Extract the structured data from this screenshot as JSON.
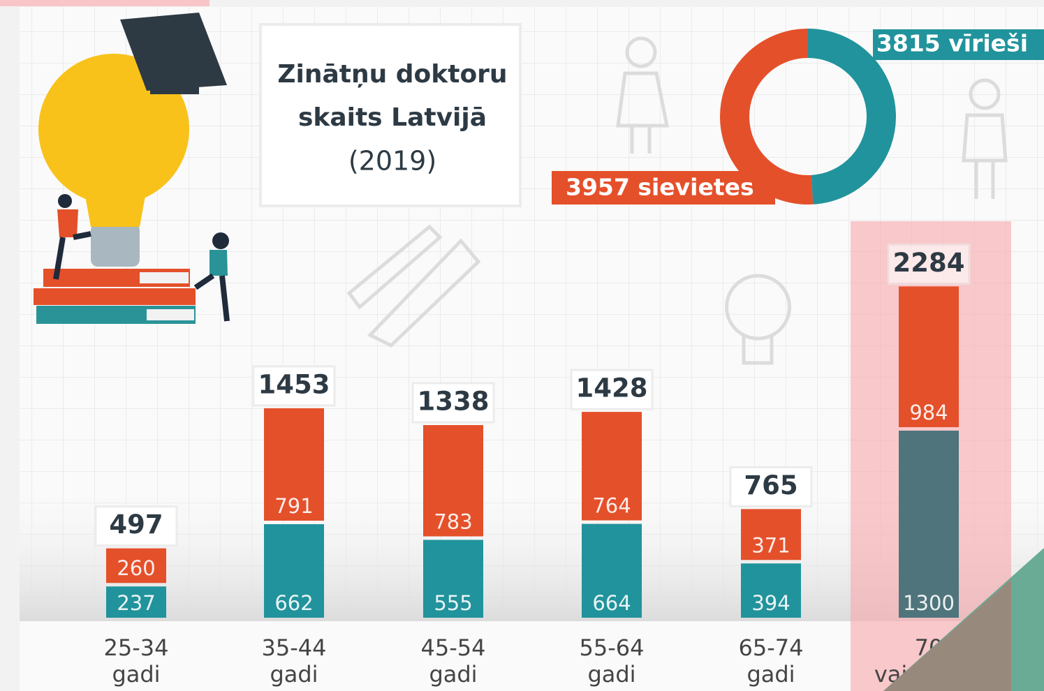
{
  "chart_data": [
    {
      "type": "pie",
      "values": [
        3957,
        3815
      ],
      "value_labels": [
        "3957 sievietes",
        "3815 vīrieši"
      ],
      "colors": [
        "#e4502a",
        "#21939c"
      ]
    },
    {
      "type": "bar",
      "stacked": true,
      "title": "Zinātņu doktoru skaits Latvijā",
      "subtitle": "(2019)",
      "categories": [
        "25-34 gadi",
        "35-44 gadi",
        "45-54 gadi",
        "55-64 gadi",
        "65-74 gadi",
        "70 vai vairāk"
      ],
      "series": [
        {
          "color": "#21939c",
          "values": [
            237,
            662,
            555,
            664,
            394,
            1300
          ]
        },
        {
          "color": "#e4502a",
          "values": [
            260,
            791,
            783,
            764,
            371,
            984
          ]
        }
      ],
      "totals": [
        497,
        1453,
        1338,
        1428,
        765,
        2284
      ]
    }
  ]
}
